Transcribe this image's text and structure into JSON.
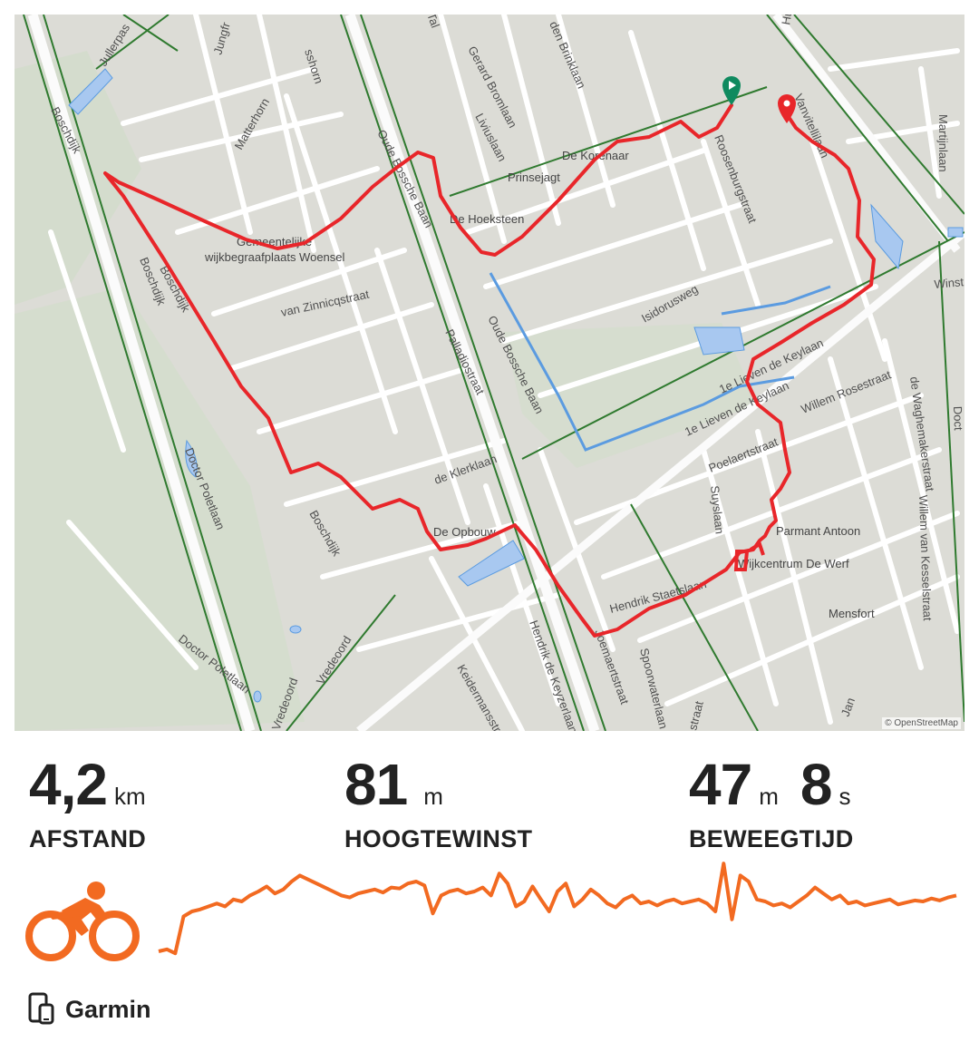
{
  "map": {
    "attribution": "© OpenStreetMap",
    "street_labels": [
      {
        "text": "Jullerpas"
      },
      {
        "text": "Boschdijk"
      },
      {
        "text": "Jungfr"
      },
      {
        "text": "sshorn"
      },
      {
        "text": "Matterhorn"
      },
      {
        "text": "Boschdijk"
      },
      {
        "text": "Oude Bossche Baan"
      },
      {
        "text": "Gerard Bromlaan"
      },
      {
        "text": "Liviuslaan"
      },
      {
        "text": "den Brinklaan"
      },
      {
        "text": "Roosenburgstraat"
      },
      {
        "text": "Vanvitellilaan"
      },
      {
        "text": "Huizingalaan"
      },
      {
        "text": "Martijnlaan"
      },
      {
        "text": "Isidorusweg"
      },
      {
        "text": "van Zinnicqstraat"
      },
      {
        "text": "Palladiostraat"
      },
      {
        "text": "Oude Bossche Baan"
      },
      {
        "text": "1e Lieven de Keylaan"
      },
      {
        "text": "1e Lieven de Keylaan"
      },
      {
        "text": "Willem Rosestraat"
      },
      {
        "text": "de Waghemakerstraat"
      },
      {
        "text": "Poelaertstraat"
      },
      {
        "text": "Suyslaan"
      },
      {
        "text": "de Klerklaan"
      },
      {
        "text": "Doctor Poletlaan"
      },
      {
        "text": "Boschdijk"
      },
      {
        "text": "Boschdijk"
      },
      {
        "text": "Doctor Poletlaan"
      },
      {
        "text": "Vredeoord"
      },
      {
        "text": "Vredeoord"
      },
      {
        "text": "Keidermansstraat"
      },
      {
        "text": "Hendrik de Keyzerlaan"
      },
      {
        "text": "Joemaertstraat"
      },
      {
        "text": "Spoorwaterlaan"
      },
      {
        "text": "Hendrik Staetslaan"
      },
      {
        "text": "Willem van Kesselstraat"
      },
      {
        "text": "Jan"
      },
      {
        "text": "Winst"
      },
      {
        "text": "Doct"
      },
      {
        "text": "Tal"
      },
      {
        "text": "straat"
      }
    ],
    "poi_labels": [
      {
        "text": "De Korenaar"
      },
      {
        "text": "Prinsejagt"
      },
      {
        "text": "De Hoeksteen"
      },
      {
        "text": "Gemeentelijke"
      },
      {
        "text": "wijkbegraafplaats Woensel"
      },
      {
        "text": "De Opbouw"
      },
      {
        "text": "Parmant Antoon"
      },
      {
        "text": "Wijkcentrum De Werf"
      },
      {
        "text": "Mensfort"
      }
    ],
    "route_color": "#e8262a",
    "start_marker_color": "#0f8a5f",
    "end_marker_color": "#e8262a"
  },
  "stats": {
    "distance": {
      "value": "4,2",
      "unit": "km",
      "label": "AFSTAND"
    },
    "elevation": {
      "value": "81",
      "unit": "m",
      "label": "HOOGTEWINST"
    },
    "moving_time": {
      "minutes": "47",
      "min_unit": "m",
      "seconds": "8",
      "sec_unit": "s",
      "label": "BEWEEGTIJD"
    }
  },
  "activity": {
    "type_icon": "cycling-icon",
    "accent_color": "#f26a21"
  },
  "elevation_profile": {
    "color": "#f26a21",
    "values": [
      0.1,
      0.12,
      0.08,
      0.45,
      0.5,
      0.52,
      0.55,
      0.58,
      0.55,
      0.62,
      0.6,
      0.66,
      0.7,
      0.75,
      0.68,
      0.72,
      0.8,
      0.86,
      0.82,
      0.78,
      0.74,
      0.7,
      0.66,
      0.64,
      0.68,
      0.7,
      0.72,
      0.69,
      0.74,
      0.73,
      0.78,
      0.8,
      0.76,
      0.48,
      0.66,
      0.7,
      0.72,
      0.68,
      0.7,
      0.74,
      0.66,
      0.88,
      0.78,
      0.55,
      0.6,
      0.75,
      0.62,
      0.5,
      0.7,
      0.78,
      0.55,
      0.62,
      0.72,
      0.66,
      0.58,
      0.54,
      0.62,
      0.66,
      0.58,
      0.6,
      0.56,
      0.6,
      0.62,
      0.58,
      0.6,
      0.62,
      0.58,
      0.5,
      0.98,
      0.42,
      0.86,
      0.8,
      0.62,
      0.6,
      0.56,
      0.58,
      0.54,
      0.6,
      0.66,
      0.74,
      0.68,
      0.62,
      0.66,
      0.58,
      0.6,
      0.56,
      0.58,
      0.6,
      0.62,
      0.57,
      0.59,
      0.61,
      0.6,
      0.63,
      0.61,
      0.64,
      0.66
    ]
  },
  "source": {
    "label": "Garmin",
    "icon": "device-sync-icon"
  }
}
